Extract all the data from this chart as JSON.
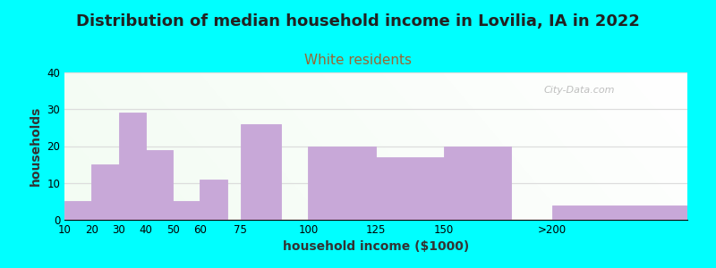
{
  "title": "Distribution of median household income in Lovilia, IA in 2022",
  "subtitle": "White residents",
  "xlabel": "household income ($1000)",
  "ylabel": "households",
  "bar_labels": [
    "10",
    "20",
    "30",
    "40",
    "50",
    "60",
    "75",
    "100",
    "125",
    "150",
    ">200"
  ],
  "bar_heights": [
    5,
    15,
    29,
    19,
    5,
    11,
    26,
    20,
    17,
    20,
    4
  ],
  "bar_color": "#C8A8D8",
  "bar_edgecolor": "#B090C8",
  "ylim": [
    0,
    40
  ],
  "yticks": [
    0,
    10,
    20,
    30,
    40
  ],
  "background_color": "#00FFFF",
  "plot_bg_topleft": "#E8F5E0",
  "plot_bg_topright": "#FFFFFF",
  "plot_bg_bottomleft": "#E8F5E0",
  "plot_bg_bottomright": "#FFFFFF",
  "grid_color": "#DDDDDD",
  "title_fontsize": 13,
  "title_color": "#222222",
  "subtitle_fontsize": 11,
  "subtitle_color": "#996633",
  "axis_label_fontsize": 10,
  "watermark_text": "City-Data.com",
  "bar_widths": [
    10,
    10,
    10,
    10,
    10,
    10,
    15,
    25,
    25,
    25,
    50
  ],
  "bar_lefts": [
    10,
    20,
    30,
    40,
    50,
    60,
    75,
    100,
    125,
    150,
    190
  ]
}
